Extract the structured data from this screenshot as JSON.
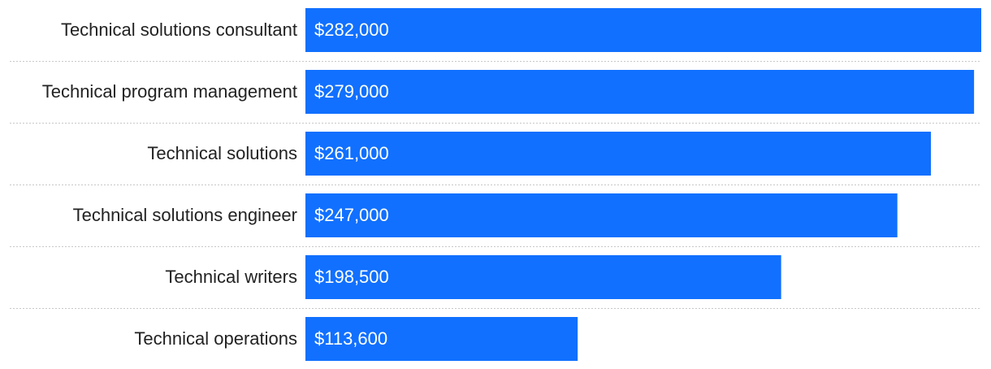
{
  "chart_data": {
    "type": "bar",
    "orientation": "horizontal",
    "categories": [
      "Technical solutions consultant",
      "Technical program management",
      "Technical solutions",
      "Technical solutions engineer",
      "Technical writers",
      "Technical operations"
    ],
    "values": [
      282000,
      279000,
      261000,
      247000,
      198500,
      113600
    ],
    "value_labels": [
      "$282,000",
      "$279,000",
      "$261,000",
      "$247,000",
      "$198,500",
      "$113,600"
    ],
    "color": "#1170ff"
  }
}
